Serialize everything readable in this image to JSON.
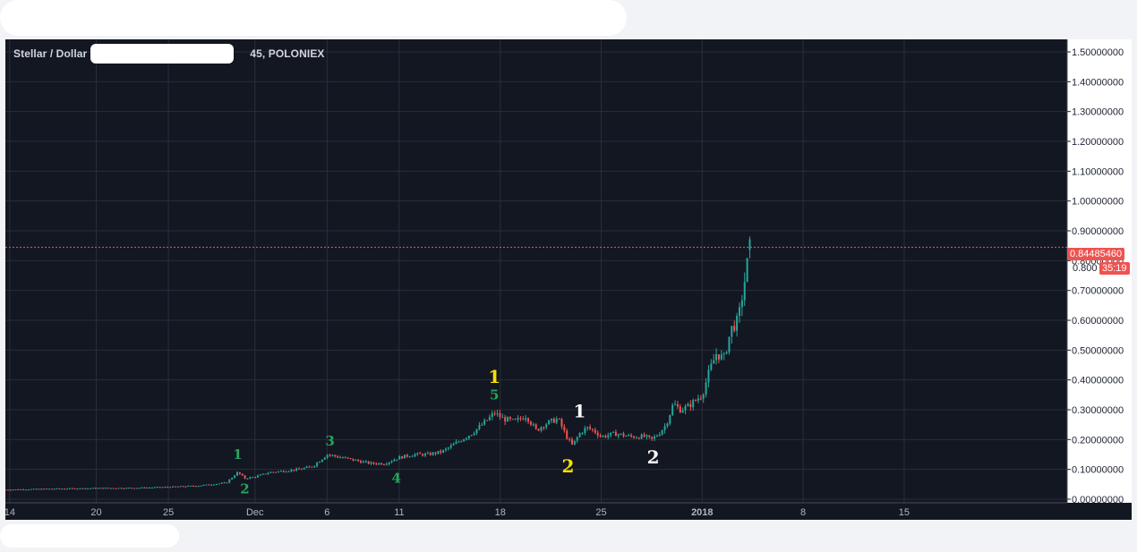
{
  "header": {
    "symbol_title": "Stellar / Dollar",
    "symbol_suffix": "45, POLONIEX"
  },
  "price_markers": {
    "last_price": "0.84485460",
    "countdown": "35:19",
    "partial_label": "0.800",
    "color": "#ef5350"
  },
  "chart_data": {
    "type": "line",
    "style": "candlestick",
    "ylim": [
      0,
      1.5
    ],
    "y_ticks": [
      "0.00000000",
      "0.10000000",
      "0.20000000",
      "0.30000000",
      "0.40000000",
      "0.50000000",
      "0.60000000",
      "0.70000000",
      "0.80000000",
      "0.90000000",
      "1.00000000",
      "1.10000000",
      "1.20000000",
      "1.30000000",
      "1.40000000",
      "1.50000000"
    ],
    "y_tick_values": [
      0,
      0.1,
      0.2,
      0.3,
      0.4,
      0.5,
      0.6,
      0.7,
      0.8,
      0.9,
      1.0,
      1.1,
      1.2,
      1.3,
      1.4,
      1.5
    ],
    "x_ticks": [
      {
        "label": "14",
        "day": 0
      },
      {
        "label": "20",
        "day": 6
      },
      {
        "label": "25",
        "day": 11
      },
      {
        "label": "Dec",
        "day": 17
      },
      {
        "label": "6",
        "day": 22
      },
      {
        "label": "11",
        "day": 27
      },
      {
        "label": "18",
        "day": 34
      },
      {
        "label": "25",
        "day": 41
      },
      {
        "label": "2018",
        "day": 48
      },
      {
        "label": "8",
        "day": 55
      },
      {
        "label": "15",
        "day": 62
      }
    ],
    "x_day_range": [
      -0.3,
      73.3
    ],
    "series": [
      {
        "x": [
          -0.3,
          3,
          6,
          9,
          11,
          13,
          15,
          15.8,
          16.3,
          17,
          18,
          19,
          20,
          21,
          22,
          23,
          24,
          25,
          26,
          27,
          28,
          29,
          30,
          31,
          32,
          32.5,
          33.2,
          33.6,
          34.2,
          35,
          35.8,
          36.5,
          37,
          37.5,
          38,
          38.6,
          39,
          39.5,
          40,
          40.5,
          41,
          42,
          43,
          44,
          44.5,
          45,
          45.5,
          46,
          46.5,
          47,
          48,
          48.5,
          49,
          49.5,
          50,
          50.5,
          51,
          51.3
        ],
        "y": [
          0.032,
          0.035,
          0.037,
          0.038,
          0.041,
          0.045,
          0.055,
          0.09,
          0.07,
          0.075,
          0.09,
          0.095,
          0.1,
          0.11,
          0.15,
          0.14,
          0.13,
          0.12,
          0.12,
          0.14,
          0.15,
          0.15,
          0.16,
          0.19,
          0.22,
          0.24,
          0.27,
          0.29,
          0.27,
          0.26,
          0.28,
          0.23,
          0.25,
          0.26,
          0.27,
          0.21,
          0.18,
          0.22,
          0.24,
          0.23,
          0.21,
          0.22,
          0.21,
          0.21,
          0.2,
          0.22,
          0.25,
          0.32,
          0.3,
          0.31,
          0.35,
          0.43,
          0.49,
          0.47,
          0.57,
          0.6,
          0.75,
          0.845
        ]
      }
    ],
    "annotations": [
      {
        "text": "1",
        "color": "#26a65b",
        "day": 15.8,
        "price": 0.135
      },
      {
        "text": "2",
        "color": "#26a65b",
        "day": 16.3,
        "price": 0.02
      },
      {
        "text": "3",
        "color": "#26a65b",
        "day": 22.2,
        "price": 0.18
      },
      {
        "text": "4",
        "color": "#26a65b",
        "day": 26.8,
        "price": 0.055
      },
      {
        "text": "1",
        "color": "#f5e000",
        "day": 33.6,
        "price": 0.39
      },
      {
        "text": "5",
        "color": "#26a65b",
        "day": 33.6,
        "price": 0.335
      },
      {
        "text": "1",
        "color": "#ffffff",
        "day": 39.5,
        "price": 0.275
      },
      {
        "text": "2",
        "color": "#f5e000",
        "day": 38.7,
        "price": 0.09
      },
      {
        "text": "2",
        "color": "#ffffff",
        "day": 44.6,
        "price": 0.12
      }
    ],
    "colors": {
      "up": "#26a69a",
      "down": "#ef5350",
      "grid": "#2a2e39",
      "background": "#131722"
    },
    "grid": true,
    "legend": "none"
  }
}
